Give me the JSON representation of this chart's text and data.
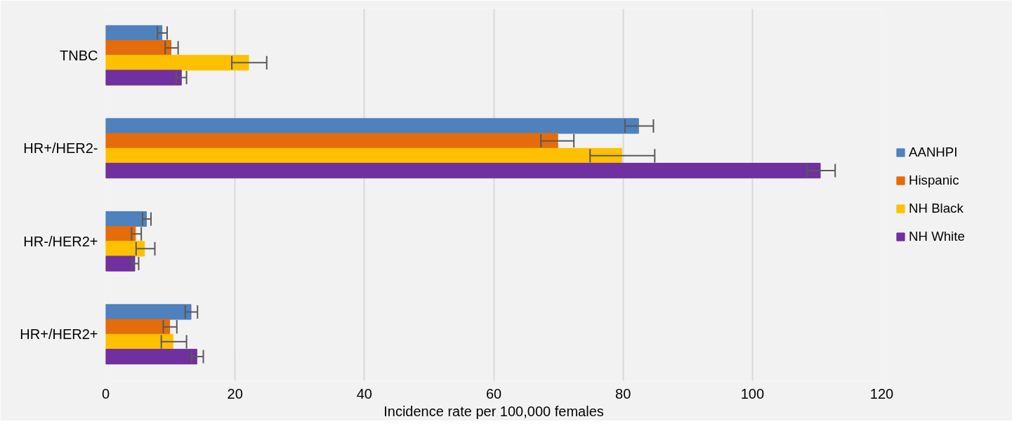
{
  "chart_data": {
    "type": "bar",
    "orientation": "horizontal",
    "xlabel": "Incidence rate per 100,000 females",
    "categories": [
      "TNBC",
      "HR+/HER2-",
      "HR-/HER2+",
      "HR+/HER2+"
    ],
    "series": [
      {
        "name": "AANHPI",
        "color": "#4f81bd",
        "values": [
          8.7,
          82.4,
          6.3,
          13.2
        ],
        "errors": [
          [
            8.0,
            9.5
          ],
          [
            80.3,
            84.7
          ],
          [
            5.7,
            7.0
          ],
          [
            12.3,
            14.2
          ]
        ]
      },
      {
        "name": "Hispanic",
        "color": "#e46c0a",
        "values": [
          10.1,
          69.9,
          4.6,
          9.9
        ],
        "errors": [
          [
            9.2,
            11.2
          ],
          [
            67.3,
            72.4
          ],
          [
            4.0,
            5.5
          ],
          [
            8.9,
            11.0
          ]
        ]
      },
      {
        "name": "NH Black",
        "color": "#ffc000",
        "values": [
          22.1,
          79.8,
          6.0,
          10.4
        ],
        "errors": [
          [
            19.5,
            24.9
          ],
          [
            74.9,
            84.9
          ],
          [
            4.7,
            7.6
          ],
          [
            8.6,
            12.5
          ]
        ]
      },
      {
        "name": "NH White",
        "color": "#7030a0",
        "values": [
          11.7,
          110.5,
          4.5,
          14.1
        ],
        "errors": [
          [
            10.9,
            12.5
          ],
          [
            108.4,
            112.8
          ],
          [
            4.1,
            5.1
          ],
          [
            13.3,
            15.1
          ]
        ]
      }
    ],
    "xlim": [
      0,
      120
    ],
    "xticks": [
      0,
      20,
      40,
      60,
      80,
      100,
      120
    ],
    "grid": "x",
    "legend": "right"
  }
}
